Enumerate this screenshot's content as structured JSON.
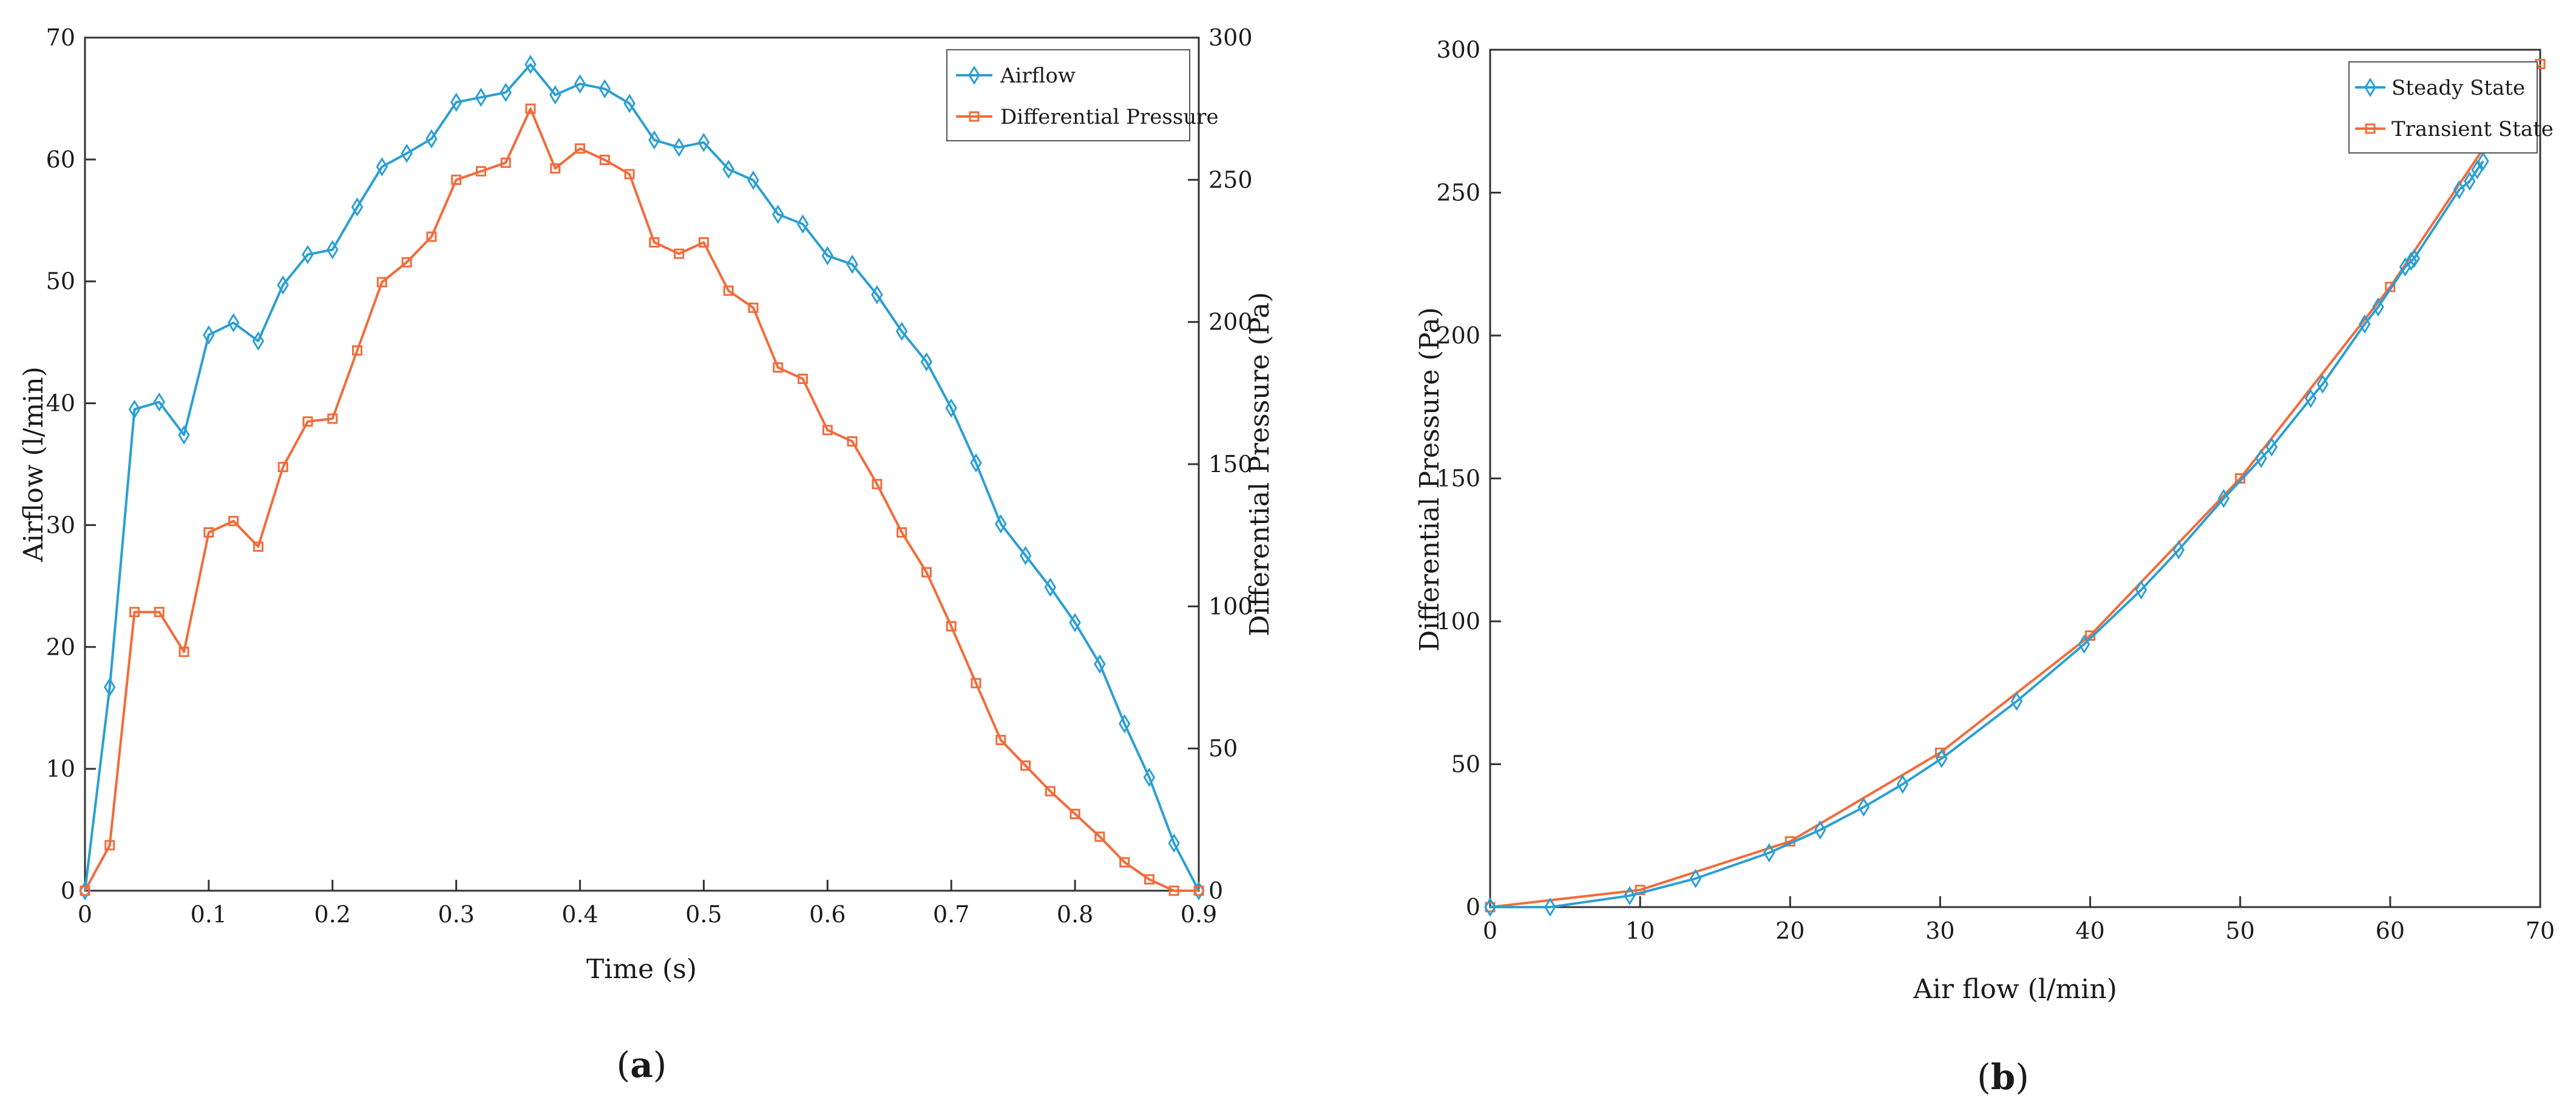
{
  "chart_data": [
    {
      "type": "line",
      "panel_label": "a",
      "xlabel": "Time (s)",
      "ylabel": "Airflow (l/min)",
      "y2label": "Differential Pressure (Pa)",
      "xlim": [
        0,
        0.9
      ],
      "ylim": [
        0,
        70
      ],
      "y2lim": [
        0,
        300
      ],
      "xticks": [
        "0",
        "0.1",
        "0.2",
        "0.3",
        "0.4",
        "0.5",
        "0.6",
        "0.7",
        "0.8",
        "0.9"
      ],
      "yticks": [
        "0",
        "10",
        "20",
        "30",
        "40",
        "50",
        "60",
        "70"
      ],
      "y2ticks": [
        "0",
        "50",
        "100",
        "150",
        "200",
        "250",
        "300"
      ],
      "legend_position": "top-right",
      "grid": false,
      "series": [
        {
          "name": "Airflow",
          "axis": "left",
          "color": "#2b9fd3",
          "marker": "diamond",
          "x": [
            0,
            0.02,
            0.04,
            0.06,
            0.08,
            0.1,
            0.12,
            0.14,
            0.16,
            0.18,
            0.2,
            0.22,
            0.24,
            0.26,
            0.28,
            0.3,
            0.32,
            0.34,
            0.36,
            0.38,
            0.4,
            0.42,
            0.44,
            0.46,
            0.48,
            0.5,
            0.52,
            0.54,
            0.56,
            0.58,
            0.6,
            0.62,
            0.64,
            0.66,
            0.68,
            0.7,
            0.72,
            0.74,
            0.76,
            0.78,
            0.8,
            0.82,
            0.84,
            0.86,
            0.88,
            0.9
          ],
          "values": [
            0,
            16.7,
            39.5,
            40.1,
            37.4,
            45.6,
            46.6,
            45.1,
            49.7,
            52.2,
            52.6,
            56.1,
            59.4,
            60.5,
            61.7,
            64.7,
            65.1,
            65.5,
            67.8,
            65.3,
            66.2,
            65.8,
            64.6,
            61.6,
            61.0,
            61.4,
            59.2,
            58.3,
            55.5,
            54.7,
            52.1,
            51.4,
            48.9,
            45.9,
            43.4,
            39.6,
            35.1,
            30.1,
            27.5,
            24.9,
            22.0,
            18.6,
            13.7,
            9.3,
            3.9,
            0
          ]
        },
        {
          "name": "Differential Pressure",
          "axis": "right",
          "color": "#f26b3a",
          "marker": "square",
          "x": [
            0,
            0.02,
            0.04,
            0.06,
            0.08,
            0.1,
            0.12,
            0.14,
            0.16,
            0.18,
            0.2,
            0.22,
            0.24,
            0.26,
            0.28,
            0.3,
            0.32,
            0.34,
            0.36,
            0.38,
            0.4,
            0.42,
            0.44,
            0.46,
            0.48,
            0.5,
            0.52,
            0.54,
            0.56,
            0.58,
            0.6,
            0.62,
            0.64,
            0.66,
            0.68,
            0.7,
            0.72,
            0.74,
            0.76,
            0.78,
            0.8,
            0.82,
            0.84,
            0.86,
            0.88,
            0.9
          ],
          "values": [
            0,
            16,
            98,
            98,
            84,
            126,
            130,
            121,
            149,
            165,
            166,
            190,
            214,
            221,
            230,
            250,
            253,
            256,
            275,
            254,
            261,
            257,
            252,
            228,
            224,
            228,
            211,
            205,
            184,
            180,
            162,
            158,
            143,
            126,
            112,
            93,
            73,
            53,
            44,
            35,
            27,
            19,
            10,
            4,
            0,
            0
          ]
        }
      ]
    },
    {
      "type": "line",
      "panel_label": "b",
      "xlabel": "Air flow (l/min)",
      "ylabel": "Differential Pressure (Pa)",
      "xlim": [
        0,
        70
      ],
      "ylim": [
        0,
        300
      ],
      "xticks": [
        "0",
        "10",
        "20",
        "30",
        "40",
        "50",
        "60",
        "70"
      ],
      "yticks": [
        "0",
        "50",
        "100",
        "150",
        "200",
        "250",
        "300"
      ],
      "legend_position": "top-right",
      "grid": false,
      "series": [
        {
          "name": "Steady State",
          "color": "#2b9fd3",
          "marker": "diamond",
          "x": [
            0,
            4,
            9.3,
            13.7,
            18.6,
            22.0,
            24.9,
            27.5,
            30.1,
            35.1,
            39.6,
            43.4,
            45.9,
            48.9,
            51.4,
            52.1,
            54.7,
            55.5,
            58.3,
            59.2,
            61.0,
            61.4,
            61.6,
            64.6,
            65.3,
            65.8,
            66.2
          ],
          "values": [
            0,
            0,
            4,
            10,
            19,
            27,
            35,
            43,
            52,
            72,
            92,
            111,
            125,
            143,
            157,
            161,
            178,
            183,
            204,
            210,
            224,
            226,
            227,
            251,
            254,
            258,
            261
          ]
        },
        {
          "name": "Transient State",
          "color": "#f26b3a",
          "marker": "square",
          "x": [
            0,
            10,
            20,
            30,
            40,
            50,
            60,
            70
          ],
          "values": [
            0,
            6,
            23,
            54,
            95,
            150,
            217,
            295
          ]
        }
      ]
    }
  ]
}
